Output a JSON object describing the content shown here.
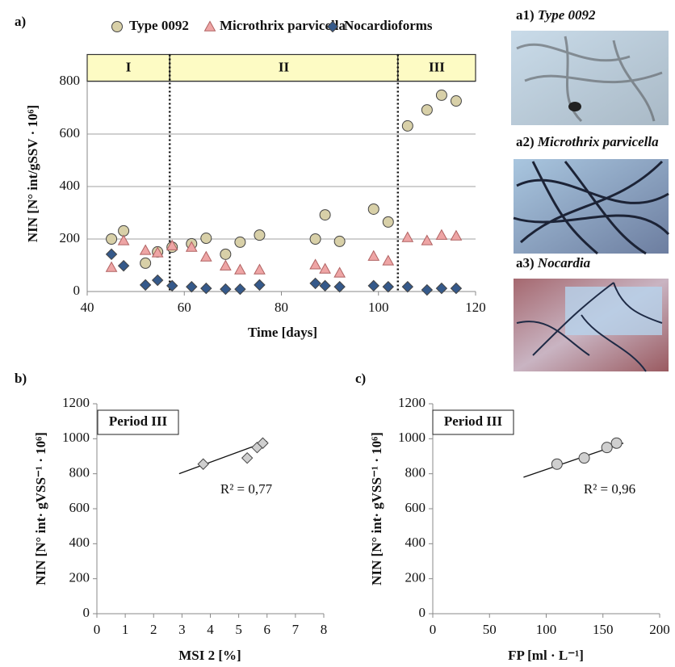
{
  "chart_data": [
    {
      "type": "scatter",
      "panel_label": "a)",
      "x_label": "Time [days]",
      "y_label": "NIN [N° int/gSSV · 10⁶]",
      "x": [
        45,
        47.5,
        52,
        54.5,
        57.5,
        61.5,
        64.5,
        68.5,
        71.5,
        75.5,
        87,
        89,
        92,
        99,
        102,
        106,
        110,
        113,
        116
      ],
      "series": [
        {
          "name": "Type 0092",
          "marker": "circle",
          "color": "#d8d0a8",
          "values": [
            200,
            231,
            108,
            151,
            169,
            182,
            203,
            142,
            188,
            215,
            200,
            292,
            191,
            314,
            265,
            631,
            692,
            748,
            726
          ]
        },
        {
          "name": "Microthrix parvicella",
          "marker": "triangle",
          "color": "#eea5a5",
          "values": [
            92,
            194,
            157,
            148,
            175,
            169,
            132,
            98,
            83,
            83,
            102,
            86,
            71,
            135,
            117,
            206,
            194,
            215,
            212
          ]
        },
        {
          "name": "Nocardioforms",
          "marker": "diamond",
          "color": "#35598a",
          "values": [
            142,
            98,
            25,
            43,
            22,
            18,
            12,
            9,
            9,
            25,
            31,
            22,
            18,
            22,
            18,
            18,
            6,
            12,
            12
          ]
        }
      ],
      "periods": [
        "I",
        "II",
        "III"
      ],
      "period_boundaries": [
        57,
        104
      ],
      "xlim": [
        40,
        120
      ],
      "ylim": [
        0,
        900
      ],
      "xticks": [
        40,
        60,
        80,
        100,
        120
      ],
      "yticks": [
        0,
        200,
        400,
        600,
        800
      ],
      "grid": true
    },
    {
      "type": "scatter",
      "panel_label": "b)",
      "x_label": "MSI 2 [%]",
      "y_label": "NIN [N° int· gVSS⁻¹ · 10⁶]",
      "annotation": "Period III",
      "fit_label": "R² = 0,77",
      "marker": "diamond",
      "color": "#cfcfcf",
      "x": [
        3.75,
        5.3,
        5.65,
        5.85
      ],
      "values": [
        855,
        890,
        950,
        975
      ],
      "trendline": {
        "x": [
          2.9,
          6
        ],
        "y": [
          800,
          985
        ]
      },
      "xlim": [
        0,
        8
      ],
      "ylim": [
        0,
        1200
      ],
      "xticks": [
        0,
        1,
        2,
        3,
        4,
        5,
        6,
        7,
        8
      ],
      "yticks": [
        0,
        200,
        400,
        600,
        800,
        1000,
        1200
      ],
      "grid": false
    },
    {
      "type": "scatter",
      "panel_label": "c)",
      "x_label": "FP [ml · L⁻¹]",
      "y_label": "NIN [N° int· gVSS⁻¹ · 10⁶]",
      "annotation": "Period III",
      "fit_label": "R² = 0,96",
      "marker": "circle",
      "color": "#cfcfcf",
      "x": [
        109.5,
        133.5,
        153.5,
        162
      ],
      "values": [
        855,
        890,
        950,
        975
      ],
      "trendline": {
        "x": [
          80,
          168
        ],
        "y": [
          780,
          975
        ]
      },
      "xlim": [
        0,
        200
      ],
      "ylim": [
        0,
        1200
      ],
      "xticks": [
        0,
        50,
        100,
        150,
        200
      ],
      "yticks": [
        0,
        200,
        400,
        600,
        800,
        1000,
        1200
      ],
      "grid": false
    }
  ],
  "micrographs": [
    {
      "label": "a1)",
      "caption": "Type 0092"
    },
    {
      "label": "a2)",
      "caption": "Microthrix parvicella"
    },
    {
      "label": "a3)",
      "caption": "Nocardia"
    }
  ]
}
